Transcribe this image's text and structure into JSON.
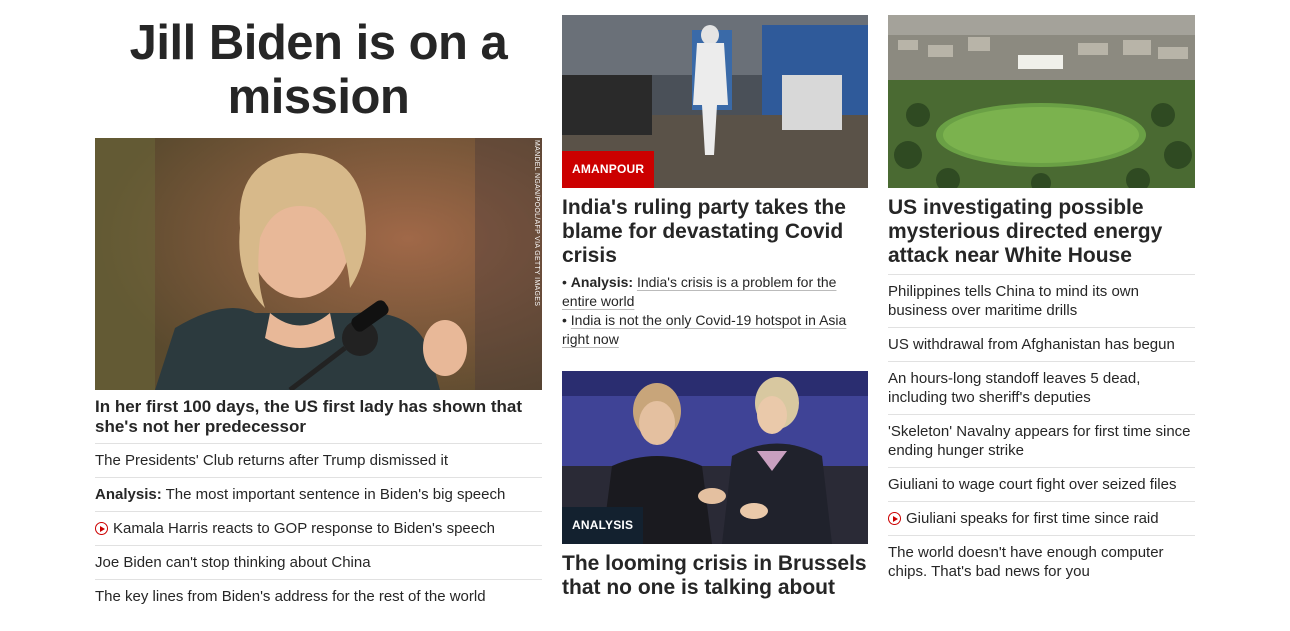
{
  "col1": {
    "hero_title": "Jill Biden is on a mission",
    "photo_credit": "MANDEL NGAN/POOL/AFP VIA GETTY IMAGES",
    "hero_sub": "In her first 100 days, the US first lady has shown that she's not her predecessor",
    "links": [
      {
        "prefix": "",
        "text": "The Presidents' Club returns after Trump dismissed it",
        "video": false
      },
      {
        "prefix": "Analysis:",
        "text": " The most important sentence in Biden's big speech",
        "video": false
      },
      {
        "prefix": "",
        "text": "Kamala Harris reacts to GOP response to Biden's speech",
        "video": true
      },
      {
        "prefix": "",
        "text": "Joe Biden can't stop thinking about China",
        "video": false
      },
      {
        "prefix": "",
        "text": "The key lines from Biden's address for the rest of the world",
        "video": false
      }
    ]
  },
  "col2": {
    "card1": {
      "tag": "AMANPOUR",
      "title": "India's ruling party takes the blame for devastating Covid crisis",
      "sub1_prefix": "Analysis:",
      "sub1_text": "India's crisis is a problem for the entire world",
      "sub2_text": "India is not the only Covid-19 hotspot in Asia right now"
    },
    "card2": {
      "tag": "ANALYSIS",
      "title": "The looming crisis in Brussels that no one is talking about"
    }
  },
  "col3": {
    "title": "US investigating possible mysterious directed energy attack near White House",
    "links": [
      {
        "text": "Philippines tells China to mind its own business over maritime drills",
        "video": false
      },
      {
        "text": "US withdrawal from Afghanistan has begun",
        "video": false
      },
      {
        "text": "An hours-long standoff leaves 5 dead, including two sheriff's deputies",
        "video": false
      },
      {
        "text": "'Skeleton' Navalny appears for first time since ending hunger strike",
        "video": false
      },
      {
        "text": "Giuliani to wage court fight over seized files",
        "video": false
      },
      {
        "text": "Giuliani speaks for first time since raid",
        "video": true
      },
      {
        "text": "The world doesn't have enough computer chips. That's bad news for you",
        "video": false
      }
    ]
  },
  "colors": {
    "accent_red": "#cc0000",
    "tag_dark": "#13212f",
    "text": "#262626",
    "divider": "#e1e1e1"
  }
}
